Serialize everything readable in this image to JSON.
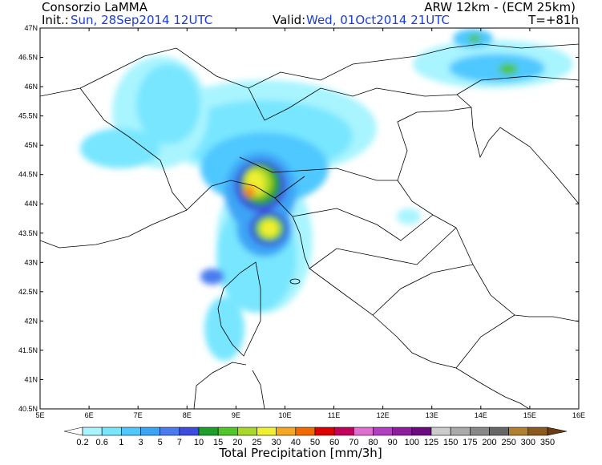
{
  "header": {
    "org": "Consorzio LaMMA",
    "model": "ARW 12km - (ECM 25km)",
    "init_label": "Init.:",
    "init": "Sun, 28Sep2014 12UTC",
    "valid_label": "Valid:",
    "valid": "Wed, 01Oct2014 21UTC",
    "lead": "T=+81h"
  },
  "map": {
    "lat_labels": [
      "47N",
      "46.5N",
      "46N",
      "45.5N",
      "45N",
      "44.5N",
      "44N",
      "43.5N",
      "43N",
      "42.5N",
      "42N",
      "41.5N",
      "41N",
      "40.5N"
    ],
    "lon_labels": [
      "5E",
      "6E",
      "7E",
      "8E",
      "9E",
      "10E",
      "11E",
      "12E",
      "13E",
      "14E",
      "15E",
      "16E"
    ]
  },
  "colorbar": {
    "levels": [
      0.2,
      0.6,
      1,
      3,
      5,
      7,
      10,
      15,
      20,
      25,
      30,
      40,
      50,
      60,
      70,
      80,
      90,
      100,
      125,
      150,
      175,
      200,
      250,
      300,
      350
    ],
    "colors": [
      "#a8f4ff",
      "#78e6ff",
      "#50c8ff",
      "#3ca4f5",
      "#4a7cf0",
      "#3c4cdc",
      "#1e9e2a",
      "#50c62a",
      "#a8d82a",
      "#f0f032",
      "#f5a623",
      "#f06a00",
      "#dc0000",
      "#c0005a",
      "#e070d0",
      "#b040c0",
      "#8c1e9c",
      "#6c0a80",
      "#cccccc",
      "#aaaaaa",
      "#888888",
      "#666666",
      "#b08030",
      "#8a5a20"
    ],
    "under_color": "#ffffff",
    "over_color": "#6b3a10",
    "title": "Total Precipitation [mm/3h]"
  }
}
